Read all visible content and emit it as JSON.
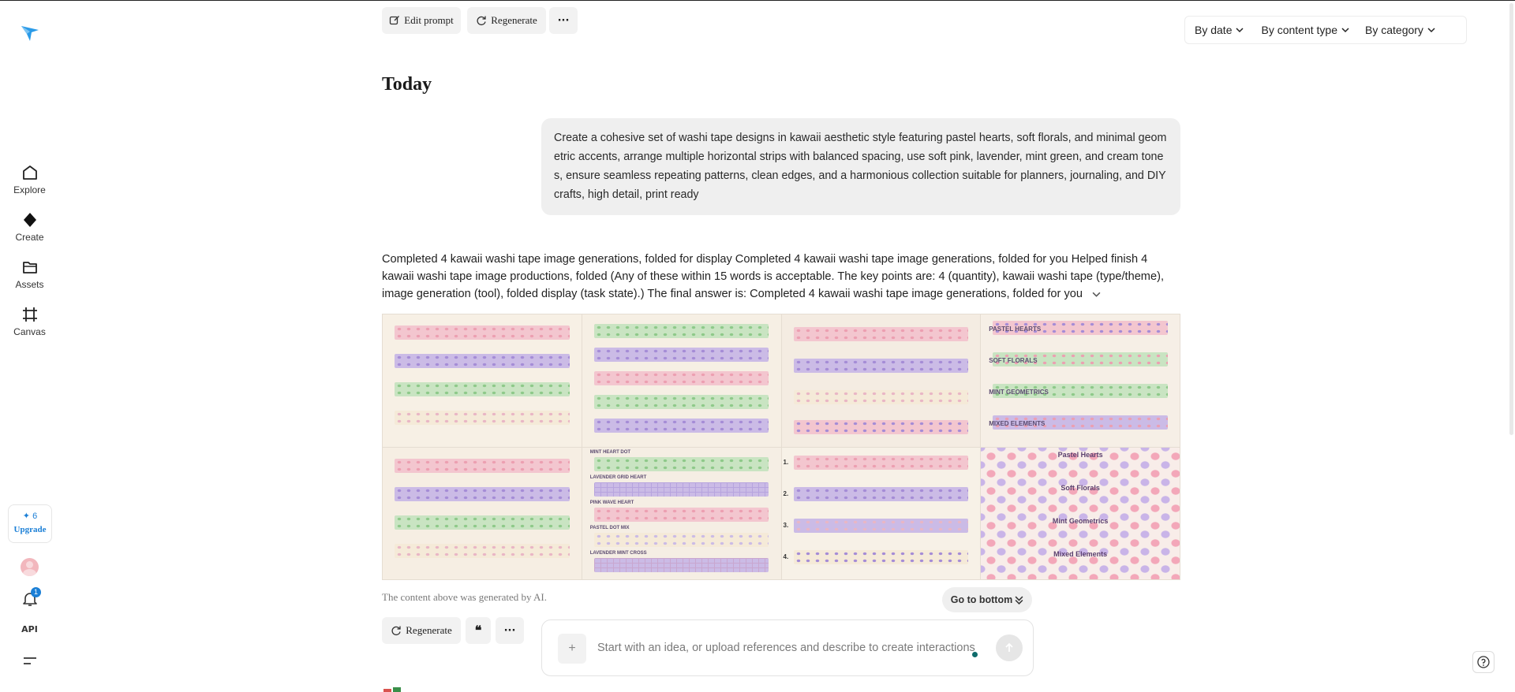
{
  "sidebar": {
    "items": [
      {
        "label": "Explore",
        "icon": "home-icon"
      },
      {
        "label": "Create",
        "icon": "diamond-icon"
      },
      {
        "label": "Assets",
        "icon": "folder-icon"
      },
      {
        "label": "Canvas",
        "icon": "canvas-icon"
      }
    ],
    "upgrade": {
      "count": "✦ 6",
      "label": "Upgrade"
    },
    "notification_count": "1",
    "api_label": "API"
  },
  "toolbar": {
    "edit_prompt": "Edit prompt",
    "regenerate": "Regenerate",
    "more": "···"
  },
  "filters": {
    "by_date": "By date",
    "by_content_type": "By content type",
    "by_category": "By category"
  },
  "section_title": "Today",
  "user_prompt": "Create a cohesive set of washi tape designs in kawaii aesthetic style featuring pastel hearts, soft florals, and minimal geometric accents, arrange multiple horizontal strips with balanced spacing, use soft pink, lavender, mint green, and cream tones, ensure seamless repeating patterns, clean edges, and a harmonious collection suitable for planners, journaling, and DIY crafts, high detail, print ready",
  "response_text": "Completed 4 kawaii washi tape image generations, folded for display Completed 4 kawaii washi tape image generations, folded for you Helped finish 4 kawaii washi tape image productions, folded (Any of these within 15 words is acceptable. The key points are: 4 (quantity), kawaii washi tape (type/theme), image generation (tool), folded display (task state).) The final answer is: Completed 4 kawaii washi tape image generations, folded for you",
  "gallery": {
    "tile4_labels": [
      "PASTEL HEARTS",
      "SOFT FLORALS",
      "MINT GEOMETRICS",
      "MIXED ELEMENTS"
    ],
    "tile8_labels": [
      "Pastel Hearts",
      "Soft Florals",
      "Mint Geometrics",
      "Mixed Elements"
    ],
    "tile6_labels": [
      "MINT HEART DOT",
      "LAVENDER GRID HEART",
      "PINK WAVE HEART",
      "PASTEL DOT MIX",
      "LAVENDER MINT CROSS"
    ],
    "tile7_labels": [
      "1.",
      "2.",
      "3.",
      "4."
    ],
    "colors": {
      "pink": "#f3c6cf",
      "lavender": "#cbbbe6",
      "mint": "#c9e4c2",
      "cream": "#f5ead8"
    }
  },
  "ai_note": "The content above was generated by AI.",
  "go_to_bottom": "Go to bottom",
  "actions": {
    "regenerate": "Regenerate",
    "quote": "❝",
    "more": "···"
  },
  "composer": {
    "attach": "+",
    "placeholder": "Start with an idea, or upload references and describe to create interactions"
  }
}
